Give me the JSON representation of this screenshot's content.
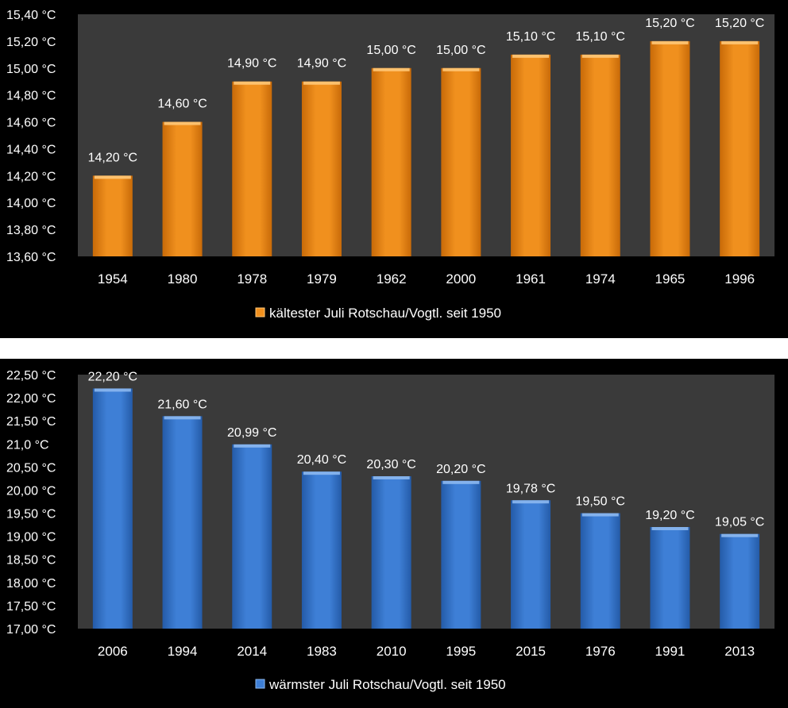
{
  "chart_data": [
    {
      "type": "bar",
      "categories": [
        "1954",
        "1980",
        "1978",
        "1979",
        "1962",
        "2000",
        "1961",
        "1974",
        "1965",
        "1996"
      ],
      "series": [
        {
          "name": "kältester Juli Rotschau/Vogtl. seit 1950",
          "values": [
            14.2,
            14.6,
            14.9,
            14.9,
            15.0,
            15.0,
            15.1,
            15.1,
            15.2,
            15.2
          ],
          "labels": [
            "14,20 °C",
            "14,60 °C",
            "14,90 °C",
            "14,90 °C",
            "15,00 °C",
            "15,00 °C",
            "15,10 °C",
            "15,10 °C",
            "15,20 °C",
            "15,20 °C"
          ]
        }
      ],
      "ylim": [
        13.6,
        15.4
      ],
      "yticks": [
        13.6,
        13.8,
        14.0,
        14.2,
        14.4,
        14.6,
        14.8,
        15.0,
        15.2,
        15.4
      ],
      "ytick_labels": [
        "13,60 °C",
        "13,80 °C",
        "14,00 °C",
        "14,20 °C",
        "14,40 °C",
        "14,60 °C",
        "14,80 °C",
        "15,00 °C",
        "15,20 °C",
        "15,40 °C"
      ],
      "legend_position": "bottom",
      "grid": false,
      "colors": {
        "bar": "#F0901E",
        "bar_light": "#FFC878",
        "bar_dark": "#C86A08",
        "plot_bg": "#3A3A3A",
        "background": "#000000"
      }
    },
    {
      "type": "bar",
      "categories": [
        "2006",
        "1994",
        "2014",
        "1983",
        "2010",
        "1995",
        "2015",
        "1976",
        "1991",
        "2013"
      ],
      "series": [
        {
          "name": "wärmster Juli Rotschau/Vogtl. seit 1950",
          "values": [
            22.2,
            21.6,
            20.99,
            20.4,
            20.3,
            20.2,
            19.78,
            19.5,
            19.2,
            19.05
          ],
          "labels": [
            "22,20 °C",
            "21,60 °C",
            "20,99 °C",
            "20,40 °C",
            "20,30 °C",
            "20,20 °C",
            "19,78 °C",
            "19,50 °C",
            "19,20 °C",
            "19,05 °C"
          ]
        }
      ],
      "ylim": [
        17.0,
        22.5
      ],
      "yticks": [
        17.0,
        17.5,
        18.0,
        18.5,
        19.0,
        19.5,
        20.0,
        20.5,
        21.0,
        21.5,
        22.0,
        22.5
      ],
      "ytick_labels": [
        "17,00 °C",
        "17,50 °C",
        "18,00 °C",
        "18,50 °C",
        "19,00 °C",
        "19,50 °C",
        "20,00 °C",
        "20,50 °C",
        "21,0 °C",
        "21,50 °C",
        "22,00 °C",
        "22,50 °C"
      ],
      "legend_position": "bottom",
      "grid": false,
      "colors": {
        "bar": "#3E7FD6",
        "bar_light": "#8CB8F0",
        "bar_dark": "#245BA8",
        "plot_bg": "#3A3A3A",
        "background": "#000000"
      }
    }
  ]
}
